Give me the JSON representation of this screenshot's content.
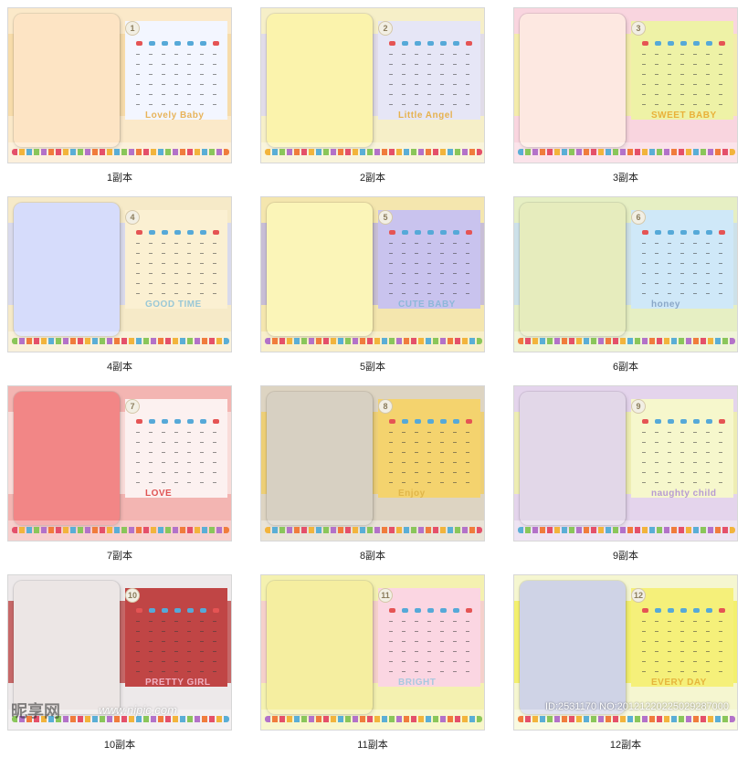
{
  "tiles": [
    {
      "caption": "1副本",
      "month": "1",
      "bg": "#fbe9c9",
      "band": "#f5d79f",
      "photo": "#fde4c4",
      "cal": "#f3f6ff",
      "word": "Lovely Baby",
      "word_color": "#e8b45a"
    },
    {
      "caption": "2副本",
      "month": "2",
      "bg": "#f6efc8",
      "band": "#d9d5f4",
      "photo": "#fbf3ac",
      "cal": "#e6e6f6",
      "word": "Little Angel",
      "word_color": "#e6b24e"
    },
    {
      "caption": "3副本",
      "month": "3",
      "bg": "#f9d5df",
      "band": "#f2f39a",
      "photo": "#fde8e1",
      "cal": "#eef2a6",
      "word": "SWEET BABY",
      "word_color": "#e9b13a"
    },
    {
      "caption": "4副本",
      "month": "4",
      "bg": "#f6eac8",
      "band": "#cfd4f8",
      "photo": "#d6dcfb",
      "cal": "#fbf0d2",
      "word": "GOOD TIME",
      "word_color": "#9ac8d6"
    },
    {
      "caption": "5副本",
      "month": "5",
      "bg": "#f4e6ae",
      "band": "#b9b0e3",
      "photo": "#fbf5b8",
      "cal": "#c9c3ee",
      "word": "CUTE BABY",
      "word_color": "#8db7d9"
    },
    {
      "caption": "6副本",
      "month": "6",
      "bg": "#e6efc3",
      "band": "#c4dcf6",
      "photo": "#e6ecbd",
      "cal": "#cfe8f8",
      "word": "honey",
      "word_color": "#8aa7c7"
    },
    {
      "caption": "7副本",
      "month": "7",
      "bg": "#f3b5b2",
      "band": "#fbe9e5",
      "photo": "#f28686",
      "cal": "#fcf1f0",
      "word": "LOVE",
      "word_color": "#e05454"
    },
    {
      "caption": "8副本",
      "month": "8",
      "bg": "#ddd4c2",
      "band": "#f1cd5e",
      "photo": "#d7d0c2",
      "cal": "#f4d36e",
      "word": "Enjoy",
      "word_color": "#e0b64a"
    },
    {
      "caption": "9副本",
      "month": "9",
      "bg": "#e4d4ec",
      "band": "#f2f5a0",
      "photo": "#e2d7e8",
      "cal": "#f6f7cc",
      "word": "naughty child",
      "word_color": "#b79bd2"
    },
    {
      "caption": "10副本",
      "month": "10",
      "bg": "#ede9ea",
      "band": "#b83c3c",
      "photo": "#ece6e5",
      "cal": "#c04545",
      "word": "PRETTY GIRL",
      "word_color": "#f2b1c2"
    },
    {
      "caption": "11副本",
      "month": "11",
      "bg": "#f4f1b0",
      "band": "#f6c4d4",
      "photo": "#f5eea0",
      "cal": "#fbd6e2",
      "word": "BRIGHT",
      "word_color": "#a9c8df"
    },
    {
      "caption": "12副本",
      "month": "12",
      "bg": "#f5f6d0",
      "band": "#f1ed4e",
      "photo": "#cfd3e6",
      "cal": "#f5f07a",
      "word": "EVERY DAY",
      "word_color": "#e5b53d"
    }
  ],
  "watermark": {
    "logo_text": "昵享网",
    "url_text": "www.nipic.com",
    "id_text": "ID:2531170 NO:20121220225029287000"
  },
  "colors": {
    "header_red": "#e55454",
    "header_blue": "#56a9d8",
    "flower_palette": [
      "#e4506a",
      "#f2b43c",
      "#5aaed6",
      "#8ac65a",
      "#b372c9",
      "#f07c3c"
    ]
  }
}
